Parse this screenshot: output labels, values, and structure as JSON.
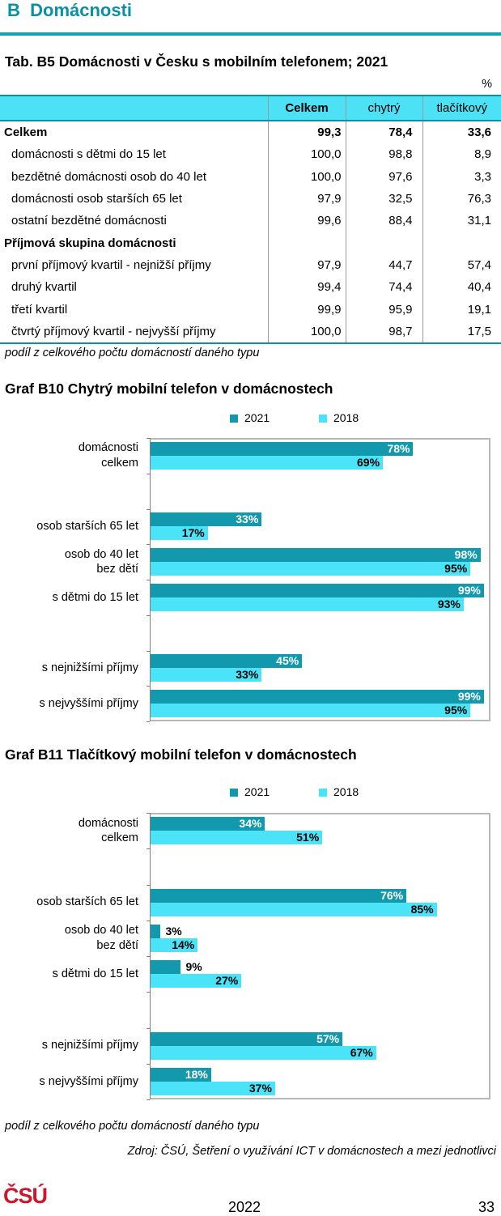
{
  "section": {
    "letter": "B",
    "title": "Domácnosti"
  },
  "table": {
    "title": "Tab. B5 Domácnosti v Česku s mobilním telefonem; 2021",
    "unit": "%",
    "headers": [
      "Celkem",
      "chytrý",
      "tlačítkový"
    ],
    "rows": [
      {
        "label": "Celkem",
        "values": [
          "99,3",
          "78,4",
          "33,6"
        ],
        "style": "total"
      },
      {
        "label": "domácnosti s dětmi do 15 let",
        "values": [
          "100,0",
          "98,8",
          "8,9"
        ],
        "style": "item"
      },
      {
        "label": "bezdětné domácnosti osob do 40 let",
        "values": [
          "100,0",
          "97,6",
          "3,3"
        ],
        "style": "item"
      },
      {
        "label": "domácnosti osob starších 65 let",
        "values": [
          "97,9",
          "32,5",
          "76,3"
        ],
        "style": "item"
      },
      {
        "label": "ostatní bezdětné domácnosti",
        "values": [
          "99,6",
          "88,4",
          "31,1"
        ],
        "style": "item"
      },
      {
        "label": "Příjmová skupina domácnosti",
        "values": [
          "",
          "",
          ""
        ],
        "style": "group"
      },
      {
        "label": "první příjmový kvartil - nejnižší příjmy",
        "values": [
          "97,9",
          "44,7",
          "57,4"
        ],
        "style": "item"
      },
      {
        "label": "druhý kvartil",
        "values": [
          "99,4",
          "74,4",
          "40,4"
        ],
        "style": "item"
      },
      {
        "label": "třetí kvartil",
        "values": [
          "99,9",
          "95,9",
          "19,1"
        ],
        "style": "item"
      },
      {
        "label": "čtvrtý příjmový kvartil - nejvyšší příjmy",
        "values": [
          "100,0",
          "98,7",
          "17,5"
        ],
        "style": "item"
      }
    ],
    "note": "podíl z celkového počtu domácností daného typu"
  },
  "colors": {
    "accent": "#0a8fa6",
    "series_2021": "#1399ad",
    "series_2018": "#4ae3f7",
    "logo": "#d0162b"
  },
  "chart_data": [
    {
      "type": "bar",
      "orientation": "horizontal",
      "title": "Graf B10 Chytrý mobilní telefon v domácnostech",
      "legend": "top",
      "categories": [
        [
          "domácnosti",
          "celkem"
        ],
        [
          "osob starších 65 let"
        ],
        [
          "osob do 40 let",
          "bez dětí"
        ],
        [
          "s dětmi do 15 let"
        ],
        [
          "s nejnižšími příjmy"
        ],
        [
          "s nejvyššími příjmy"
        ]
      ],
      "series": [
        {
          "name": "2021",
          "values": [
            78,
            33,
            98,
            99,
            45,
            99
          ],
          "labels": [
            "78%",
            "33%",
            "98%",
            "99%",
            "45%",
            "99%"
          ]
        },
        {
          "name": "2018",
          "values": [
            69,
            17,
            95,
            93,
            33,
            95
          ],
          "labels": [
            "69%",
            "17%",
            "95%",
            "93%",
            "33%",
            "95%"
          ]
        }
      ],
      "xlim": [
        0,
        100
      ]
    },
    {
      "type": "bar",
      "orientation": "horizontal",
      "title": "Graf B11 Tlačítkový mobilní telefon v domácnostech",
      "legend": "top",
      "categories": [
        [
          "domácnosti",
          "celkem"
        ],
        [
          "osob starších 65 let"
        ],
        [
          "osob do 40 let",
          "bez dětí"
        ],
        [
          "s dětmi do 15 let"
        ],
        [
          "s nejnižšími příjmy"
        ],
        [
          "s nejvyššími příjmy"
        ]
      ],
      "series": [
        {
          "name": "2021",
          "values": [
            34,
            76,
            3,
            9,
            57,
            18
          ],
          "labels": [
            "34%",
            "76%",
            "3%",
            "9%",
            "57%",
            "18%"
          ]
        },
        {
          "name": "2018",
          "values": [
            51,
            85,
            14,
            27,
            67,
            37
          ],
          "labels": [
            "51%",
            "85%",
            "14%",
            "27%",
            "67%",
            "37%"
          ]
        }
      ],
      "xlim": [
        0,
        100
      ]
    }
  ],
  "charts_note": "podíl z celkového počtu domácností daného typu",
  "source": "Zdroj: ČSÚ, Šetření o využívání ICT v domácnostech a mezi jednotlivci",
  "footer": {
    "logo": "ČSÚ",
    "year": "2022",
    "page": "33"
  }
}
